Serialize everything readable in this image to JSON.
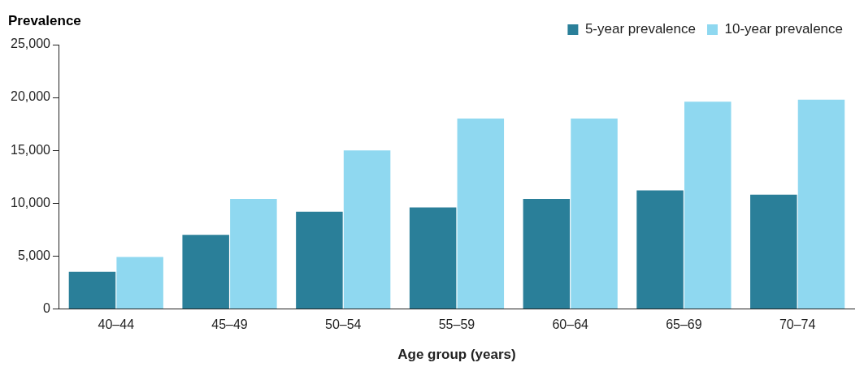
{
  "chart_data": {
    "type": "bar",
    "xlabel": "Age group (years)",
    "ylabel": "Prevalence",
    "categories": [
      "40–44",
      "45–49",
      "50–54",
      "55–59",
      "60–64",
      "65–69",
      "70–74"
    ],
    "series": [
      {
        "name": "5-year prevalence",
        "color": "#2a7f99",
        "values": [
          3500,
          7000,
          9200,
          9600,
          10400,
          11200,
          10800
        ]
      },
      {
        "name": "10-year prevalence",
        "color": "#8fd8f0",
        "values": [
          4900,
          10400,
          15000,
          18000,
          18000,
          19600,
          19800
        ]
      }
    ],
    "ylim": [
      0,
      25000
    ],
    "yticks": [
      0,
      {
        "value": 5000,
        "label": "5,000"
      },
      {
        "value": 10000,
        "label": "10,000"
      },
      {
        "value": 15000,
        "label": "15,000"
      },
      {
        "value": 20000,
        "label": "20,000"
      },
      {
        "value": 25000,
        "label": "25,000"
      }
    ],
    "grid": false,
    "legend": "top right"
  }
}
